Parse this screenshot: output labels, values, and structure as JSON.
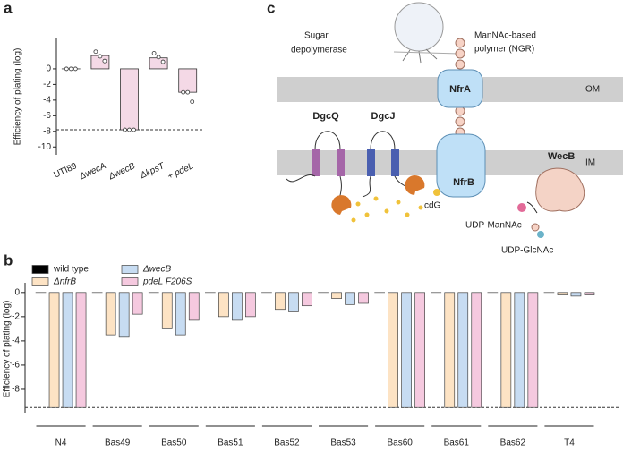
{
  "chart_data": [
    {
      "type": "bar",
      "panel_label": "a",
      "ylabel": "Efficiency of plating (log)",
      "categories": [
        "UTI89",
        "ΔwecA",
        "ΔwecB",
        "ΔkpsT",
        "+ pdeL"
      ],
      "values": [
        0,
        1.7,
        -7.8,
        1.4,
        -3.0
      ],
      "points": [
        [
          0,
          0,
          0
        ],
        [
          2.2,
          1.6,
          1.0
        ],
        [
          -7.8,
          -7.8,
          -7.8
        ],
        [
          2.0,
          1.5,
          0.9
        ],
        [
          -3.0,
          -3.0,
          -4.2
        ]
      ],
      "color": "#f4d9e6",
      "limit_line": -7.8,
      "ylim": [
        -11,
        4
      ],
      "yticks": [
        0,
        -2,
        -4,
        -6,
        -8,
        -10
      ]
    },
    {
      "type": "grouped_bar",
      "panel_label": "b",
      "ylabel": "Efficiency of plating (log)",
      "categories": [
        "N4",
        "Bas49",
        "Bas50",
        "Bas51",
        "Bas52",
        "Bas53",
        "Bas60",
        "Bas61",
        "Bas62",
        "T4"
      ],
      "series": [
        {
          "name": "wild type",
          "color": "#000000",
          "values": [
            0,
            0,
            0,
            0,
            0,
            0,
            0,
            0,
            0,
            0
          ]
        },
        {
          "name": "ΔnfrB",
          "color": "#fde3c4",
          "values": [
            -9.5,
            -3.5,
            -3.0,
            -2.0,
            -1.4,
            -0.5,
            -9.5,
            -9.5,
            -9.5,
            -0.2
          ]
        },
        {
          "name": "ΔwecB",
          "color": "#c7dcf2",
          "values": [
            -9.5,
            -3.7,
            -3.5,
            -2.3,
            -1.6,
            -1.0,
            -9.5,
            -9.5,
            -9.5,
            -0.3
          ]
        },
        {
          "name": "pdeL F206S",
          "color": "#f5c9df",
          "values": [
            -9.5,
            -1.8,
            -2.3,
            -2.0,
            -1.1,
            -0.9,
            -9.5,
            -9.5,
            -9.5,
            -0.2
          ]
        }
      ],
      "limit_line": -9.5,
      "ylim": [
        -10,
        0.8
      ],
      "yticks": [
        0,
        -2,
        -4,
        -6,
        -8
      ]
    }
  ],
  "diagram": {
    "panel_label": "c",
    "labels": {
      "depolymerase": [
        "Sugar",
        "depolymerase"
      ],
      "polymer": [
        "ManNAc-based",
        "polymer (NGR)"
      ],
      "nfra": "NfrA",
      "om": "OM",
      "dgcq": "DgcQ",
      "dgcj": "DgcJ",
      "im": "IM",
      "nfrb": "NfrB",
      "cdg": "cdG",
      "wecb": "WecB",
      "udp_mannac": "UDP-ManNAc",
      "udp_glcnac": "UDP-GlcNAc"
    }
  }
}
